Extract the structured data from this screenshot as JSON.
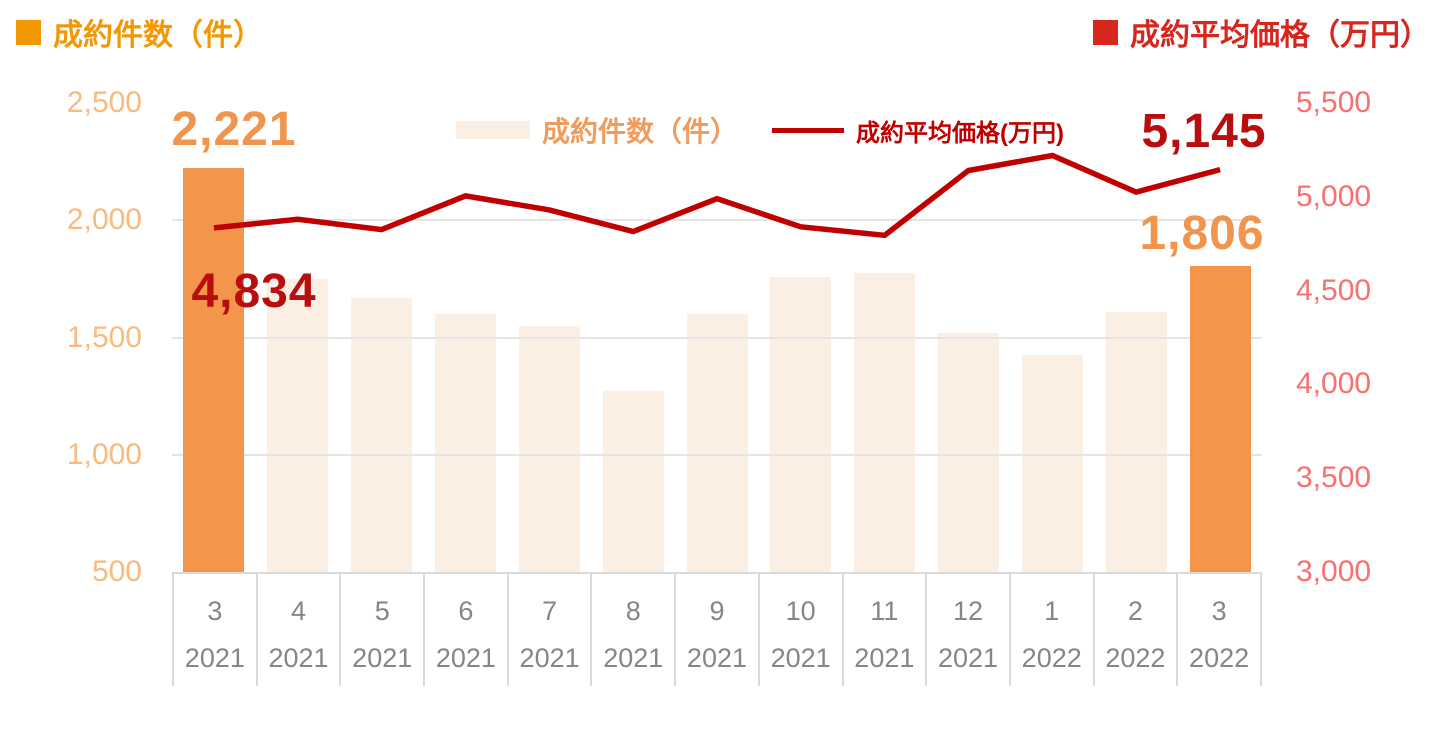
{
  "header": {
    "left_title": "成約件数（件）",
    "right_title": "成約平均価格（万円）"
  },
  "legend": {
    "bar_label": "成約件数（件）",
    "line_label": "成約平均価格(万円)"
  },
  "chart_data": {
    "type": "combo-bar-line",
    "categories_month": [
      "3",
      "4",
      "5",
      "6",
      "7",
      "8",
      "9",
      "10",
      "11",
      "12",
      "1",
      "2",
      "3"
    ],
    "categories_year": [
      "2021",
      "2021",
      "2021",
      "2021",
      "2021",
      "2021",
      "2021",
      "2021",
      "2021",
      "2021",
      "2022",
      "2022",
      "2022"
    ],
    "series": [
      {
        "name": "成約件数（件）",
        "type": "bar",
        "axis": "left",
        "values": [
          2221,
          1750,
          1670,
          1600,
          1550,
          1270,
          1600,
          1760,
          1775,
          1520,
          1425,
          1610,
          1806
        ]
      },
      {
        "name": "成約平均価格(万円)",
        "type": "line",
        "axis": "right",
        "values": [
          4834,
          4880,
          4825,
          5005,
          4930,
          4815,
          4990,
          4840,
          4795,
          5140,
          5220,
          5025,
          5145
        ]
      }
    ],
    "left_axis": {
      "min": 500,
      "max": 2500,
      "ticks": [
        {
          "value": 2500,
          "label": "2,500"
        },
        {
          "value": 2000,
          "label": "2,000"
        },
        {
          "value": 1500,
          "label": "1,500"
        },
        {
          "value": 1000,
          "label": "1,000"
        },
        {
          "value": 500,
          "label": "500"
        }
      ]
    },
    "right_axis": {
      "min": 3000,
      "max": 5500,
      "ticks": [
        {
          "value": 5500,
          "label": "5,500"
        },
        {
          "value": 5000,
          "label": "5,000"
        },
        {
          "value": 4500,
          "label": "4,500"
        },
        {
          "value": 4000,
          "label": "4,000"
        },
        {
          "value": 3500,
          "label": "3,500"
        },
        {
          "value": 3000,
          "label": "3,000"
        }
      ]
    },
    "gridline_values_left": [
      2000,
      1500,
      1000
    ],
    "highlight_indices": [
      0,
      12
    ],
    "annotations": {
      "bar_start": "2,221",
      "line_start": "4,834",
      "line_end": "5,145",
      "bar_end": "1,806"
    },
    "legend_position": "top-center",
    "grid": "horizontal-only"
  },
  "colors": {
    "title_orange": "#F39800",
    "title_red": "#D7261D",
    "bar_light": "#FBEFE4",
    "bar_highlight": "#F3964B",
    "line_color": "#C00000",
    "axis_left_labels": "#F8BA7D",
    "axis_right_labels": "#F97070",
    "legend_orange": "#EF9C5F",
    "annotation_orange": "#F1954E",
    "annotation_red": "#B80E10",
    "gridline": "#E5E5E5",
    "axis_line": "#DADADA",
    "xaxis_text": "#868686"
  }
}
